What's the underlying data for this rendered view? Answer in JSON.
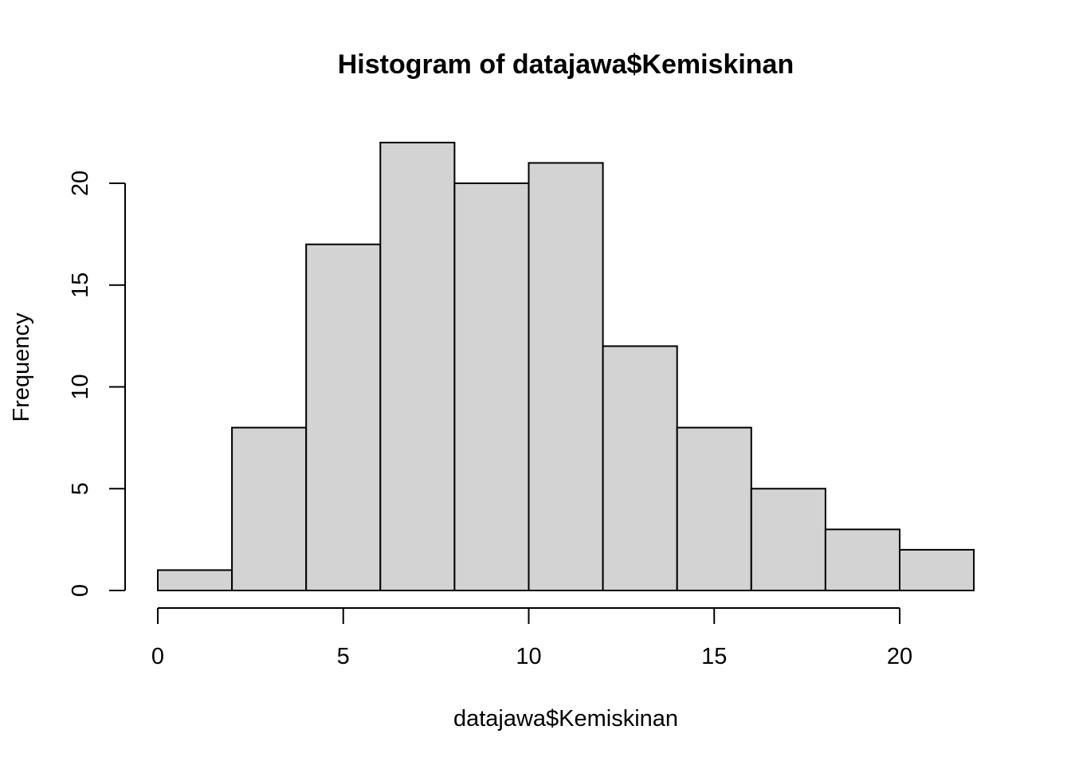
{
  "chart_data": {
    "type": "bar",
    "title": "Histogram of datajawa$Kemiskinan",
    "xlabel": "datajawa$Kemiskinan",
    "ylabel": "Frequency",
    "bins": [
      {
        "start": 0,
        "end": 2,
        "count": 1
      },
      {
        "start": 2,
        "end": 4,
        "count": 8
      },
      {
        "start": 4,
        "end": 6,
        "count": 17
      },
      {
        "start": 6,
        "end": 8,
        "count": 22
      },
      {
        "start": 8,
        "end": 10,
        "count": 20
      },
      {
        "start": 10,
        "end": 12,
        "count": 21
      },
      {
        "start": 12,
        "end": 14,
        "count": 12
      },
      {
        "start": 14,
        "end": 16,
        "count": 8
      },
      {
        "start": 16,
        "end": 18,
        "count": 5
      },
      {
        "start": 18,
        "end": 20,
        "count": 3
      },
      {
        "start": 20,
        "end": 22,
        "count": 2
      }
    ],
    "x_ticks": [
      0,
      5,
      10,
      15,
      20
    ],
    "y_ticks": [
      0,
      5,
      10,
      15,
      20
    ],
    "xlim": [
      0,
      22
    ],
    "ylim": [
      0,
      22
    ],
    "bar_color": "#d3d3d3",
    "border_color": "#000000",
    "grid": false
  }
}
